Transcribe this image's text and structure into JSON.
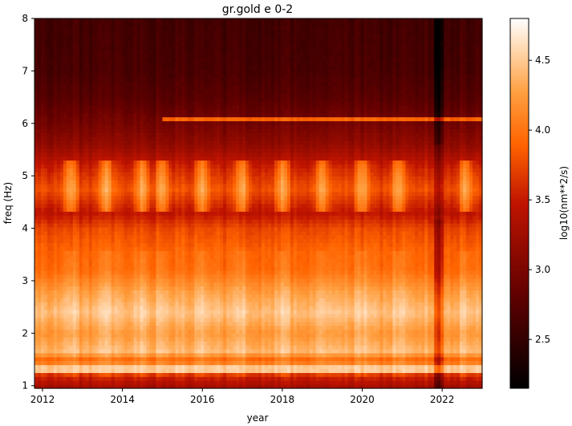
{
  "chart_data": {
    "type": "heatmap",
    "title": "gr.gold e 0-2",
    "xlabel": "year",
    "ylabel": "freq (Hz)",
    "xlim": [
      2011.8,
      2023.0
    ],
    "ylim": [
      0.95,
      8.0
    ],
    "x_ticks": [
      2012,
      2014,
      2016,
      2018,
      2020,
      2022
    ],
    "x_tick_labels": [
      "2012",
      "2014",
      "2016",
      "2018",
      "2020",
      "2022"
    ],
    "y_ticks": [
      1,
      2,
      3,
      4,
      5,
      6,
      7,
      8
    ],
    "y_tick_labels": [
      "1",
      "2",
      "3",
      "4",
      "5",
      "6",
      "7",
      "8"
    ],
    "colormap": "gist_heat",
    "colorbar": {
      "label": "log10(nm**2/s)",
      "range": [
        2.15,
        4.8
      ],
      "ticks": [
        2.5,
        3.0,
        3.5,
        4.0,
        4.5
      ],
      "tick_labels": [
        "2.5",
        "3.0",
        "3.5",
        "4.0",
        "4.5"
      ]
    },
    "freq_profile": [
      {
        "freq": 1.0,
        "value": 3.3
      },
      {
        "freq": 1.2,
        "value": 3.6
      },
      {
        "freq": 1.35,
        "value": 4.3
      },
      {
        "freq": 1.5,
        "value": 3.9
      },
      {
        "freq": 1.65,
        "value": 4.4
      },
      {
        "freq": 2.0,
        "value": 4.2
      },
      {
        "freq": 2.4,
        "value": 4.45
      },
      {
        "freq": 2.8,
        "value": 4.25
      },
      {
        "freq": 3.2,
        "value": 3.95
      },
      {
        "freq": 3.6,
        "value": 3.9
      },
      {
        "freq": 4.0,
        "value": 3.75
      },
      {
        "freq": 4.3,
        "value": 3.45
      },
      {
        "freq": 4.75,
        "value": 3.8
      },
      {
        "freq": 5.15,
        "value": 3.55
      },
      {
        "freq": 5.6,
        "value": 3.15
      },
      {
        "freq": 6.0,
        "value": 2.95
      },
      {
        "freq": 6.5,
        "value": 2.75
      },
      {
        "freq": 7.0,
        "value": 2.65
      },
      {
        "freq": 8.0,
        "value": 2.6
      }
    ],
    "narrow_lines": [
      {
        "freq": 1.33,
        "value": 4.5
      },
      {
        "freq": 6.08,
        "value": 3.9
      }
    ],
    "seasonal_peaks_year": [
      2012.7,
      2013.6,
      2014.5,
      2015.0,
      2016.0,
      2017.0,
      2018.0,
      2019.0,
      2020.0,
      2020.9,
      2022.6
    ],
    "quiet_period": {
      "start": 2021.75,
      "end": 2022.05
    }
  }
}
